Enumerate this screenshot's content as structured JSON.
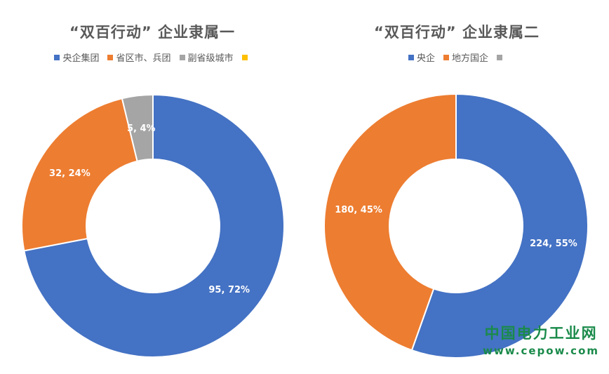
{
  "colors": {
    "blue": "#4472C4",
    "orange": "#ED7D31",
    "gray": "#A5A5A5",
    "yellow": "#FFC000",
    "text": "#595959",
    "watermark": "#1a8a4a"
  },
  "chart_data": [
    {
      "type": "pie",
      "donut": true,
      "title": "“双百行动” 企业隶属一",
      "legend_position": "top",
      "series": [
        {
          "name": "央企集团",
          "value": 95,
          "percent": 72,
          "label": "95, 72%",
          "color": "#4472C4"
        },
        {
          "name": "省区市、兵团",
          "value": 32,
          "percent": 24,
          "label": "32, 24%",
          "color": "#ED7D31"
        },
        {
          "name": "副省级城市",
          "value": 5,
          "percent": 4,
          "label": "5, 4%",
          "color": "#A5A5A5"
        },
        {
          "name": "",
          "value": 0,
          "percent": 0,
          "label": "",
          "color": "#FFC000"
        }
      ]
    },
    {
      "type": "pie",
      "donut": true,
      "title": "“双百行动” 企业隶属二",
      "legend_position": "top",
      "series": [
        {
          "name": "央企",
          "value": 224,
          "percent": 55,
          "label": "224, 55%",
          "color": "#4472C4"
        },
        {
          "name": "地方国企",
          "value": 180,
          "percent": 45,
          "label": "180, 45%",
          "color": "#ED7D31"
        },
        {
          "name": "",
          "value": 0,
          "percent": 0,
          "label": "",
          "color": "#A5A5A5"
        }
      ]
    }
  ],
  "watermark": {
    "name": "中国电力工业网",
    "url": "www.cepow.com"
  }
}
